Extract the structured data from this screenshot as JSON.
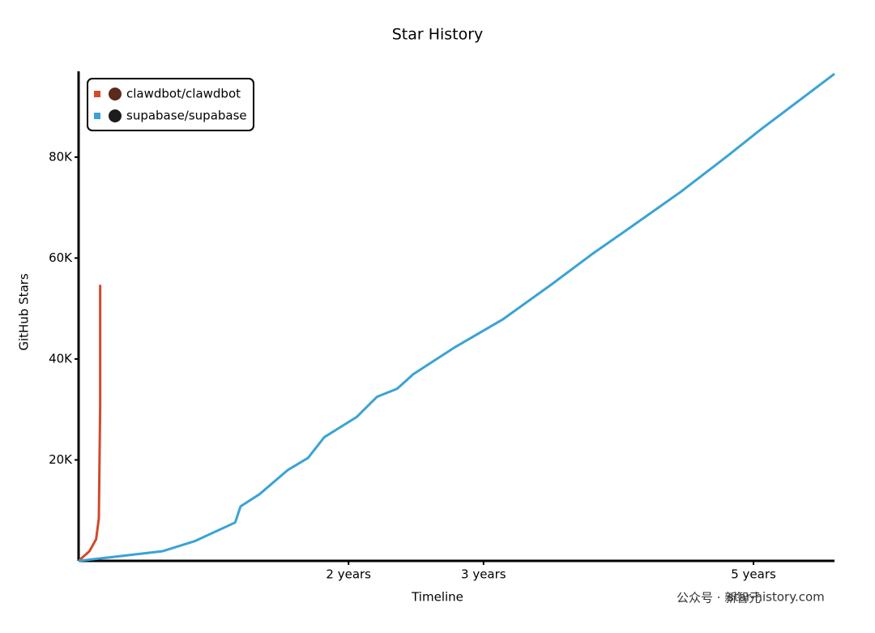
{
  "chart_data": {
    "type": "line",
    "title": "Star History",
    "x_label": "Timeline",
    "y_label": "GitHub Stars",
    "series": [
      {
        "name": "clawdbot/clawdbot",
        "color": "#d2492b",
        "x": [
          0,
          0.08,
          0.13,
          0.15,
          0.16,
          0.16
        ],
        "values": [
          0,
          1900,
          4300,
          8400,
          30900,
          54700
        ]
      },
      {
        "name": "supabase/supabase",
        "color": "#3aa3d6",
        "x": [
          0,
          0.2,
          0.62,
          0.86,
          1.16,
          1.2,
          1.34,
          1.55,
          1.7,
          1.82,
          2.06,
          2.21,
          2.36,
          2.48,
          2.78,
          3.14,
          3.5,
          3.8,
          4.1,
          4.46,
          4.82,
          5.06,
          5.6
        ],
        "values": [
          0,
          600,
          1900,
          3900,
          7600,
          10800,
          13200,
          18000,
          20400,
          24500,
          28500,
          32500,
          34100,
          37000,
          42200,
          47800,
          54700,
          60700,
          66300,
          73100,
          80500,
          85600,
          96500
        ]
      }
    ],
    "xlim": [
      0,
      5.6
    ],
    "xticks": [
      {
        "value": 2,
        "label": "2 years"
      },
      {
        "value": 3,
        "label": "3 years"
      },
      {
        "value": 5,
        "label": "5 years"
      }
    ],
    "ylim": [
      0,
      97000
    ],
    "yticks": [
      {
        "value": 20000,
        "label": "20K"
      },
      {
        "value": 40000,
        "label": "40K"
      },
      {
        "value": 60000,
        "label": "60K"
      },
      {
        "value": 80000,
        "label": "80K"
      }
    ],
    "legend": "top-left",
    "watermark": "star-history.com",
    "overlay_watermark": "公众号 · 新智元"
  }
}
